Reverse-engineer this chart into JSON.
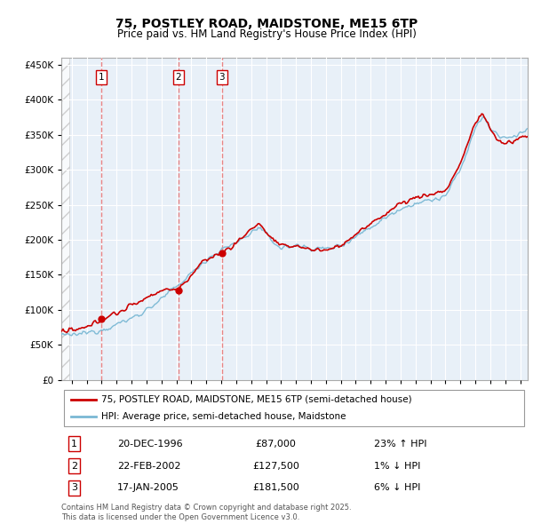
{
  "title": "75, POSTLEY ROAD, MAIDSTONE, ME15 6TP",
  "subtitle": "Price paid vs. HM Land Registry's House Price Index (HPI)",
  "legend_line1": "75, POSTLEY ROAD, MAIDSTONE, ME15 6TP (semi-detached house)",
  "legend_line2": "HPI: Average price, semi-detached house, Maidstone",
  "footnote": "Contains HM Land Registry data © Crown copyright and database right 2025.\nThis data is licensed under the Open Government Licence v3.0.",
  "transactions": [
    {
      "num": 1,
      "date": "20-DEC-1996",
      "price": 87000,
      "hpi_diff": "23% ↑ HPI",
      "x": 1996.97
    },
    {
      "num": 2,
      "date": "22-FEB-2002",
      "price": 127500,
      "hpi_diff": "1% ↓ HPI",
      "x": 2002.13
    },
    {
      "num": 3,
      "date": "17-JAN-2005",
      "price": 181500,
      "hpi_diff": "6% ↓ HPI",
      "x": 2005.05
    }
  ],
  "sold_color": "#cc0000",
  "hpi_color": "#7ab8d4",
  "vline_color": "#e87878",
  "plot_bg": "#e8f0f8",
  "ylim": [
    0,
    460000
  ],
  "xlim_start": 1994.3,
  "xlim_end": 2025.5,
  "yticks": [
    0,
    50000,
    100000,
    150000,
    200000,
    250000,
    300000,
    350000,
    400000,
    450000
  ],
  "hpi_seed_values": {
    "1994.0": 62000,
    "1995.0": 64000,
    "1996.0": 67000,
    "1997.0": 72000,
    "1998.0": 79000,
    "1999.0": 88000,
    "2000.0": 100000,
    "2001.0": 115000,
    "2002.0": 133000,
    "2003.0": 152000,
    "2004.0": 172000,
    "2005.0": 185000,
    "2006.0": 196000,
    "2007.0": 210000,
    "2007.5": 218000,
    "2008.0": 207000,
    "2009.0": 188000,
    "2010.0": 192000,
    "2011.0": 188000,
    "2012.0": 187000,
    "2013.0": 192000,
    "2014.0": 205000,
    "2015.0": 218000,
    "2016.0": 232000,
    "2017.0": 245000,
    "2018.0": 252000,
    "2019.0": 256000,
    "2020.0": 262000,
    "2021.0": 300000,
    "2021.5": 330000,
    "2022.0": 360000,
    "2022.5": 375000,
    "2023.0": 360000,
    "2023.5": 348000,
    "2024.0": 345000,
    "2024.5": 348000,
    "2025.0": 352000,
    "2025.5": 358000
  },
  "sold_seed_values": {
    "1994.0": 68000,
    "1995.0": 70000,
    "1996.0": 74000,
    "1996.97": 87000,
    "1997.0": 87500,
    "1998.0": 95000,
    "1999.0": 106000,
    "2000.0": 118000,
    "2001.0": 128000,
    "2002.0": 130000,
    "2002.13": 127500,
    "2003.0": 150000,
    "2004.0": 172000,
    "2005.0": 182000,
    "2005.05": 181500,
    "2006.0": 195000,
    "2007.0": 215000,
    "2007.5": 225000,
    "2008.0": 210000,
    "2009.0": 190000,
    "2010.0": 192000,
    "2011.0": 186000,
    "2012.0": 185000,
    "2013.0": 192000,
    "2014.0": 208000,
    "2015.0": 222000,
    "2016.0": 238000,
    "2017.0": 252000,
    "2018.0": 260000,
    "2019.0": 265000,
    "2020.0": 270000,
    "2021.0": 308000,
    "2021.5": 338000,
    "2022.0": 368000,
    "2022.5": 380000,
    "2023.0": 358000,
    "2023.5": 342000,
    "2024.0": 338000,
    "2024.5": 340000,
    "2025.0": 345000,
    "2025.5": 348000
  }
}
